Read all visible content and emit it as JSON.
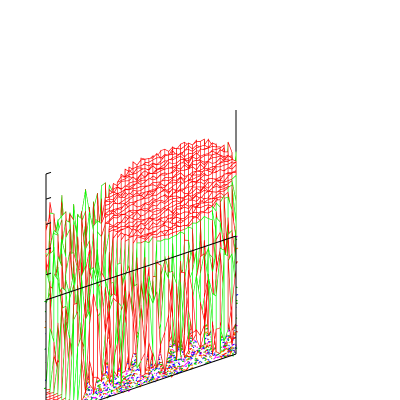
{
  "chart_data": {
    "type": "surface",
    "title": "",
    "xlabel": "",
    "ylabel": "",
    "zlabel": "",
    "grid": false,
    "legend": "none",
    "xlim": [
      0,
      1
    ],
    "ylim": [
      0,
      1
    ],
    "zlim": [
      0,
      1
    ],
    "z_tick_values": [
      0,
      0.2,
      0.4,
      0.6,
      0.8,
      1.0
    ],
    "grid_resolution": 48,
    "surface": {
      "description_free": true,
      "plateau_level": 0.86,
      "base_level": 0.02,
      "threshold": 0.5,
      "front_color": "#ff0000",
      "back_color": "#00ff00"
    },
    "contour_levels": [
      0.15,
      0.3,
      0.45,
      0.6,
      0.75
    ],
    "contour_colors": [
      "#ff00ff",
      "#0000ff",
      "#00cc00",
      "#ff8800",
      "#ff0000"
    ],
    "axis_color": "#000000",
    "background": "#ffffff"
  }
}
